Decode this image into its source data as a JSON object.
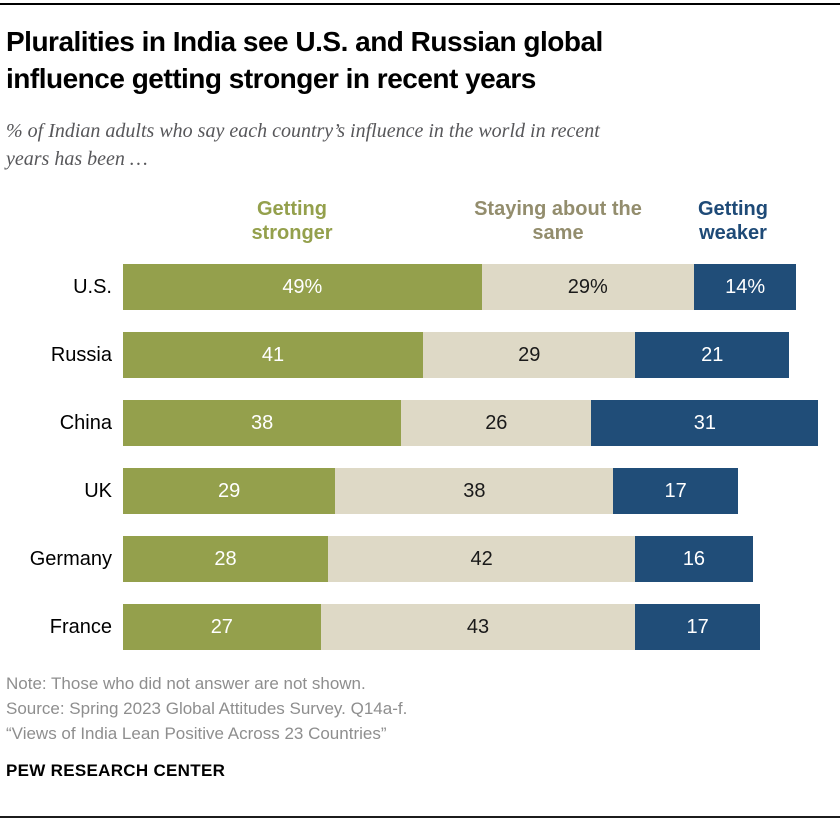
{
  "header": {
    "title_lines": [
      "Pluralities in India see U.S. and Russian global",
      "influence getting stronger in recent years"
    ],
    "subtitle_lines": [
      "% of Indian adults who say each country’s influence in the world in recent",
      "years has been …"
    ]
  },
  "chart_data": {
    "type": "bar",
    "stacked": true,
    "orientation": "horizontal",
    "title": "Pluralities in India see U.S. and Russian global influence getting stronger in recent years",
    "subtitle": "% of Indian adults who say each country’s influence in the world in recent years has been …",
    "categories": [
      "U.S.",
      "Russia",
      "China",
      "UK",
      "Germany",
      "France"
    ],
    "series": [
      {
        "key": "stronger",
        "name": "Getting stronger",
        "color": "#94a04c",
        "legend_color": "#94a04c",
        "text_color": "#ffffff",
        "values": [
          49,
          41,
          38,
          29,
          28,
          27
        ],
        "labels": [
          "49%",
          "41",
          "38",
          "29",
          "28",
          "27"
        ]
      },
      {
        "key": "same",
        "name": "Staying about the same",
        "color": "#ded9c6",
        "legend_color": "#938d6d",
        "text_color": "#1a1a1a",
        "values": [
          29,
          29,
          26,
          38,
          42,
          43
        ],
        "labels": [
          "29%",
          "29",
          "26",
          "38",
          "42",
          "43"
        ]
      },
      {
        "key": "weaker",
        "name": "Getting weaker",
        "color": "#204d78",
        "legend_color": "#1e4a77",
        "text_color": "#ffffff",
        "values": [
          14,
          21,
          31,
          17,
          16,
          17
        ],
        "labels": [
          "14%",
          "21",
          "31",
          "17",
          "16",
          "17"
        ]
      }
    ],
    "xlim": [
      0,
      100
    ],
    "grid": false,
    "legend_position": "top",
    "value_label_position": "inside"
  },
  "footer": {
    "note": "Note: Those who did not answer are not shown.",
    "source": "Source: Spring 2023 Global Attitudes Survey. Q14a-f.",
    "citation": "“Views of India Lean Positive Across 23 Countries”",
    "brand": "PEW RESEARCH CENTER"
  }
}
